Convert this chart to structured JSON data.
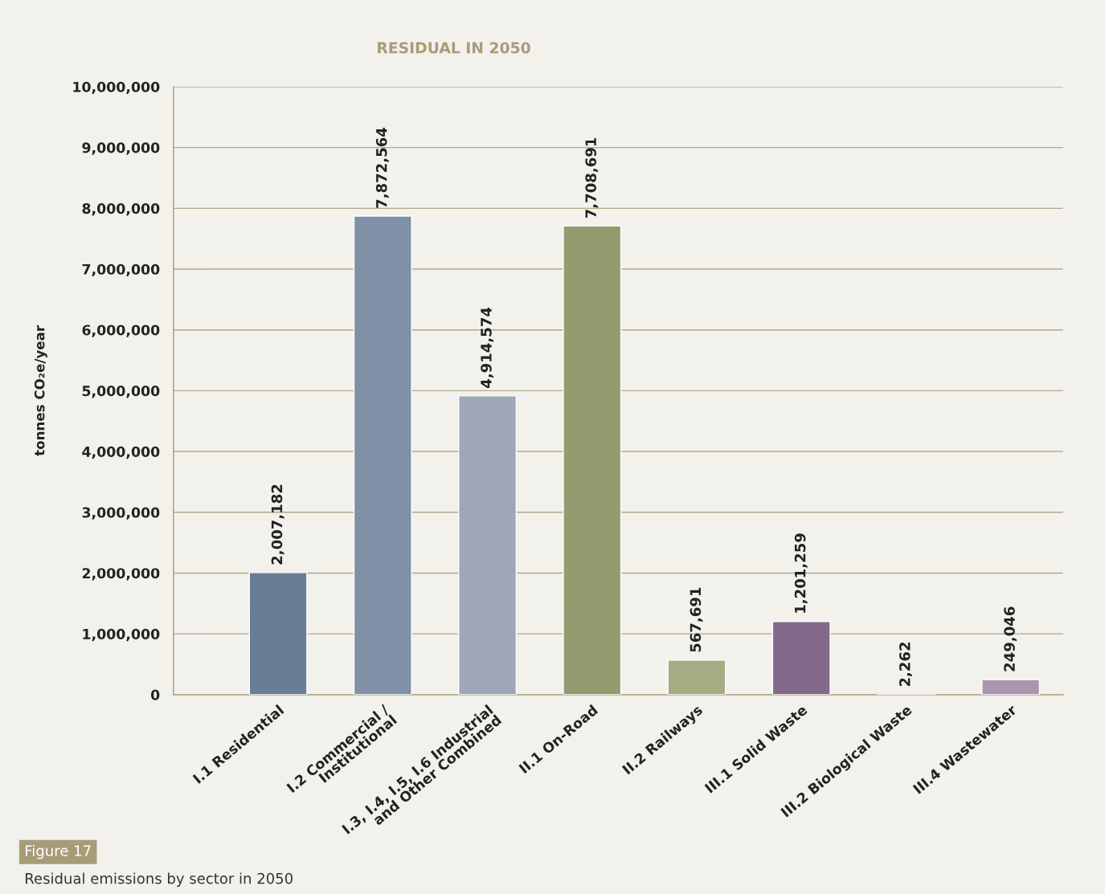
{
  "chart_data": {
    "type": "bar",
    "title": "RESIDUAL IN 2050",
    "ylabel": "tonnes CO₂e/year",
    "categories": [
      "I.1 Residential",
      "I.2 Commercial /\nInstitutional",
      "I.3, I.4, I.5, I.6 Industrial\nand Other Combined",
      "II.1 On-Road",
      "II.2 Railways",
      "III.1 Solid Waste",
      "III.2 Biological Waste",
      "III.4 Wastewater"
    ],
    "values": [
      2007182,
      7872564,
      4914574,
      7708691,
      567691,
      1201259,
      2262,
      249046
    ],
    "colors": [
      "#687e97",
      "#8090a7",
      "#9da7b7",
      "#949c6f",
      "#a6ab83",
      "#836a8a",
      "#8f7b9a",
      "#a996ad"
    ],
    "value_labels": [
      "2,007,182",
      "7,872,564",
      "4,914,574",
      "7,708,691",
      "567,691",
      "1,201,259",
      "2,262",
      "249,046"
    ],
    "ylim": [
      0,
      10000000
    ],
    "yticks": [
      {
        "value": 0,
        "label": "0"
      },
      {
        "value": 1000000,
        "label": "1,000,000"
      },
      {
        "value": 2000000,
        "label": "2,000,000"
      },
      {
        "value": 3000000,
        "label": "3,000,000"
      },
      {
        "value": 4000000,
        "label": "4,000,000"
      },
      {
        "value": 5000000,
        "label": "5,000,000"
      },
      {
        "value": 6000000,
        "label": "6,000,000"
      },
      {
        "value": 7000000,
        "label": "7,000,000"
      },
      {
        "value": 8000000,
        "label": "8,000,000"
      },
      {
        "value": 9000000,
        "label": "9,000,000"
      },
      {
        "value": 10000000,
        "label": "10,000,000"
      }
    ],
    "grid": "y",
    "legend": false,
    "annotations": [
      "Figure 17",
      "Residual emissions by sector in 2050"
    ]
  }
}
